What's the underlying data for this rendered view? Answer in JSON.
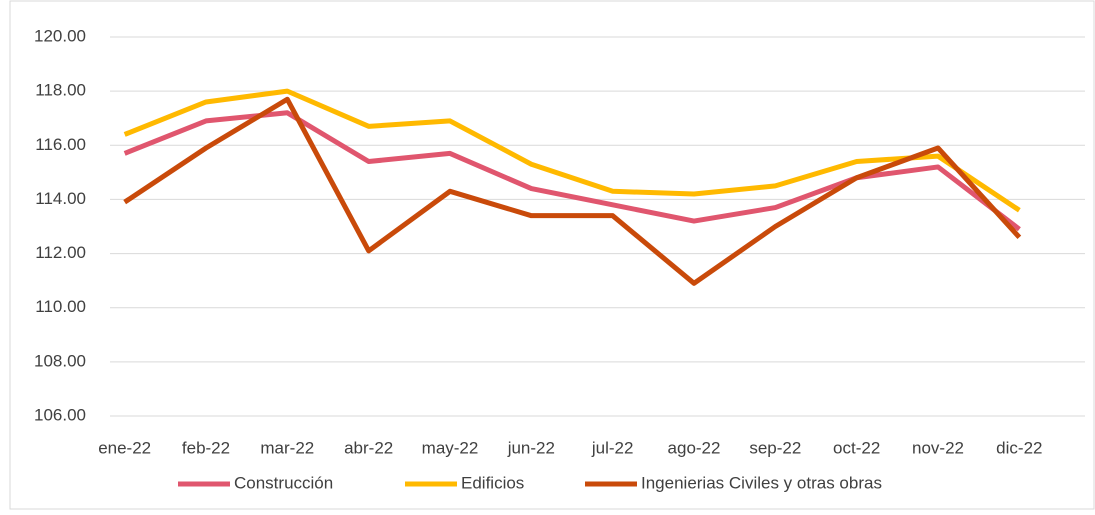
{
  "chart_data": {
    "type": "line",
    "categories": [
      "ene-22",
      "feb-22",
      "mar-22",
      "abr-22",
      "may-22",
      "jun-22",
      "jul-22",
      "ago-22",
      "sep-22",
      "oct-22",
      "nov-22",
      "dic-22"
    ],
    "series": [
      {
        "name": "Construcción",
        "color": "#e0566e",
        "values": [
          115.7,
          116.9,
          117.2,
          115.4,
          115.7,
          114.4,
          113.8,
          113.2,
          113.7,
          114.8,
          115.2,
          112.9
        ]
      },
      {
        "name": "Edificios",
        "color": "#ffb900",
        "values": [
          116.4,
          117.6,
          118.0,
          116.7,
          116.9,
          115.3,
          114.3,
          114.2,
          114.5,
          115.4,
          115.6,
          113.6
        ]
      },
      {
        "name": "Ingenierias Civiles y otras obras",
        "color": "#c94a0a",
        "values": [
          113.9,
          115.9,
          117.7,
          112.1,
          114.3,
          113.4,
          113.4,
          110.9,
          113.0,
          114.8,
          115.9,
          112.6
        ]
      }
    ],
    "ylim": [
      106,
      120
    ],
    "yticks": [
      {
        "value": 106,
        "label": "106.00"
      },
      {
        "value": 108,
        "label": "108.00"
      },
      {
        "value": 110,
        "label": "110.00"
      },
      {
        "value": 112,
        "label": "112.00"
      },
      {
        "value": 114,
        "label": "114.00"
      },
      {
        "value": 116,
        "label": "116.00"
      },
      {
        "value": 118,
        "label": "118.00"
      },
      {
        "value": 120,
        "label": "120.00"
      }
    ],
    "grid": true,
    "legend": "bottom"
  }
}
